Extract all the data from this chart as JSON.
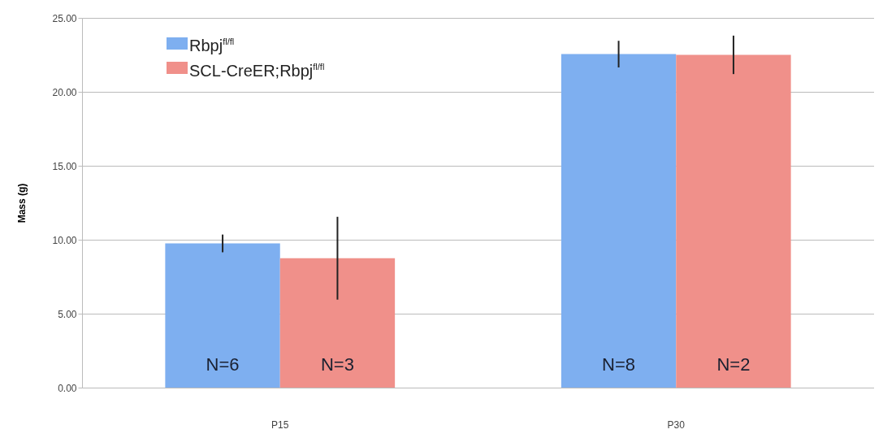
{
  "chart_data": {
    "type": "bar",
    "ylabel": "Mass (g)",
    "categories": [
      "P15",
      "P30"
    ],
    "series": [
      {
        "name": "Rbpj$^{fl/fl}$",
        "color": "#7eaff0",
        "values": [
          9.75,
          22.55
        ],
        "errors": [
          0.6,
          0.9
        ]
      },
      {
        "name": "SCL-CreER;Rbpj$^{fl/fl}$",
        "color": "#f0908a",
        "values": [
          8.75,
          22.5
        ],
        "errors": [
          2.8,
          1.3
        ]
      }
    ],
    "ylim": [
      0,
      25
    ],
    "yticks": [
      {
        "value": 0,
        "label": "0.00"
      },
      {
        "value": 5,
        "label": "5.00"
      },
      {
        "value": 10,
        "label": "10.00"
      },
      {
        "value": 15,
        "label": "15.00"
      },
      {
        "value": 20,
        "label": "20.00"
      },
      {
        "value": 25,
        "label": "25.00"
      }
    ],
    "grid": "y",
    "legend": "top left",
    "annotations": [
      "N=6",
      "N=3",
      "N=8",
      "N=2"
    ]
  }
}
